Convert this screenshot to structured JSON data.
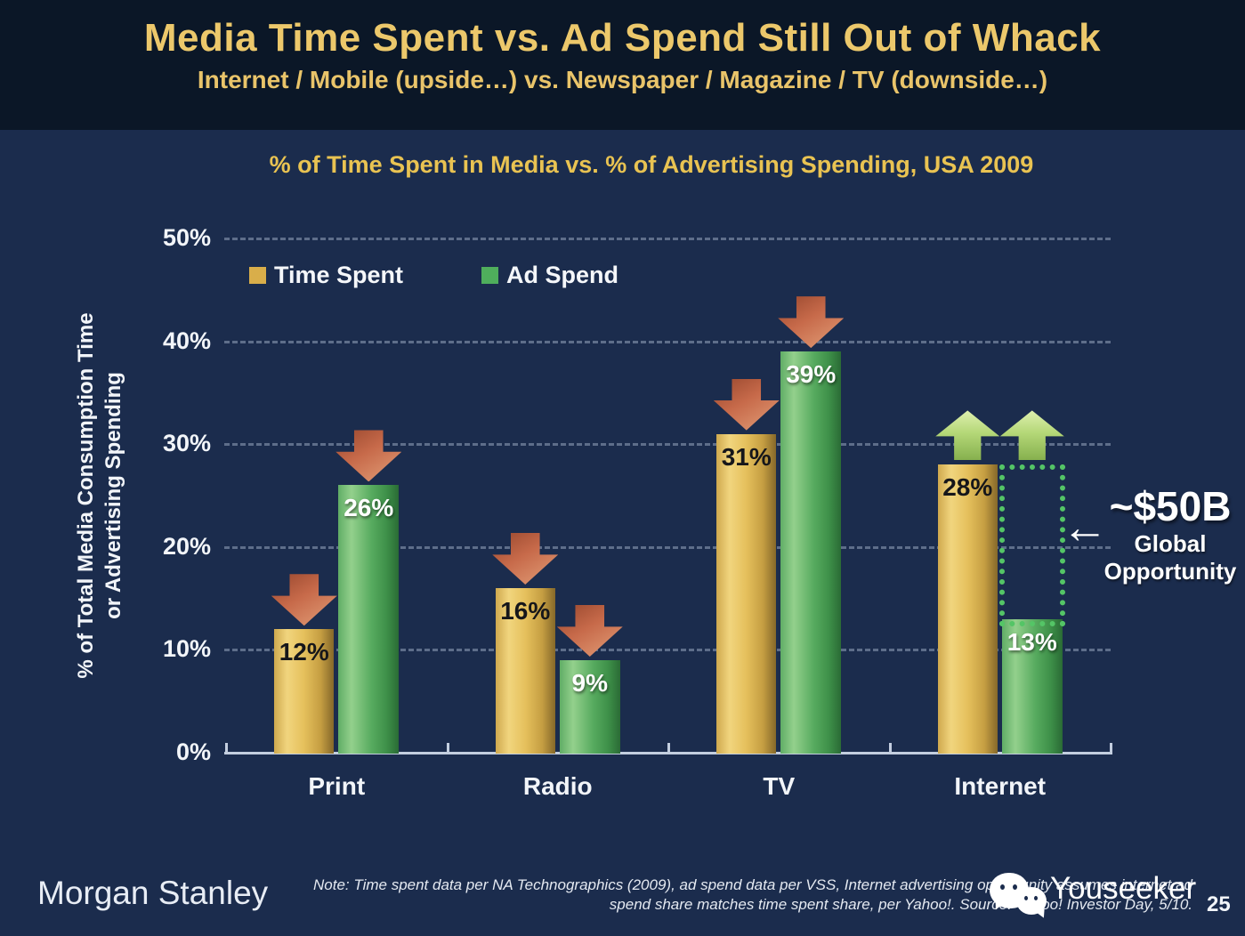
{
  "slide": {
    "title": "Media Time Spent vs. Ad Spend Still Out of Whack",
    "subtitle": "Internet / Mobile (upside…) vs. Newspaper / Magazine / TV (downside…)"
  },
  "chart": {
    "title": "% of Time Spent in Media vs. % of Advertising Spending, USA 2009",
    "y_axis_label_line1": "% of Total Media Consumption Time",
    "y_axis_label_line2": "or Advertising Spending"
  },
  "chart_data": {
    "type": "bar",
    "title": "% of Time Spent in Media vs. % of Advertising Spending, USA 2009",
    "categories": [
      "Print",
      "Radio",
      "TV",
      "Internet"
    ],
    "series": [
      {
        "name": "Time Spent",
        "values": [
          12,
          16,
          31,
          28
        ]
      },
      {
        "name": "Ad Spend",
        "values": [
          26,
          9,
          39,
          13
        ]
      }
    ],
    "value_label_format": "{v}%",
    "ylabel": "% of Total Media Consumption Time or Advertising Spending",
    "ylim": [
      0,
      50
    ],
    "y_tick_values": [
      0,
      10,
      20,
      30,
      40,
      50
    ],
    "grid": true,
    "legend_position": "top-left",
    "legend": [
      {
        "label": "Time Spent",
        "color": "#d9ae4a"
      },
      {
        "label": "Ad Spend",
        "color": "#4fae5c"
      }
    ],
    "trend_arrows": [
      [
        "down",
        "down"
      ],
      [
        "down",
        "down"
      ],
      [
        "down",
        "down"
      ],
      [
        "up",
        "up"
      ]
    ],
    "opportunity_box": {
      "category": "Internet",
      "from_series": "Ad Spend",
      "to_series": "Time Spent"
    },
    "annotation": {
      "value": "~$50B",
      "line1": "Global",
      "line2": "Opportunity",
      "arrow": "←"
    }
  },
  "footer": {
    "logo": "Morgan Stanley",
    "note_line1": "Note: Time spent data per NA Technographics (2009), ad spend data per VSS, Internet advertising opportunity assumes internet ad",
    "note_line2": "spend share matches time spent share, per Yahoo!. Source: Yahoo! Investor Day, 5/10.",
    "watermark": "Youseeker",
    "page_number": "25"
  }
}
